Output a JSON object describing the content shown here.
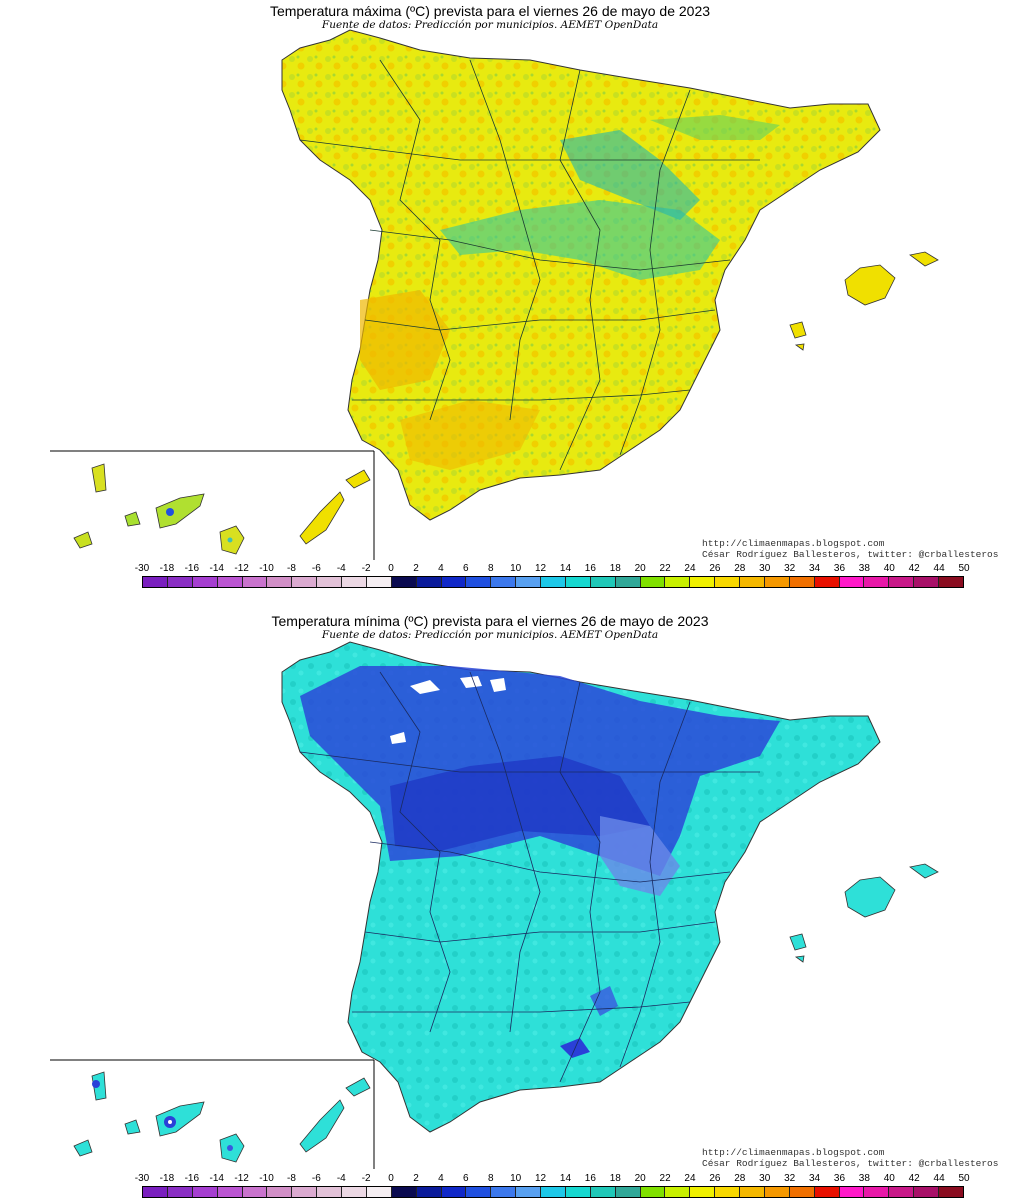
{
  "maps": [
    {
      "id": "max",
      "title": "Temperatura máxima (ºC) prevista para el viernes 26 de mayo de 2023",
      "subtitle": "Fuente de datos: Predicción por municipios. AEMET OpenData",
      "credit_url": "http://climaenmapas.blogspot.com",
      "credit_author": "César Rodríguez Ballesteros, twitter: @crballesteros",
      "dominant_colors": [
        "#f4f400",
        "#e8c800",
        "#9be010",
        "#3fc8a8"
      ]
    },
    {
      "id": "min",
      "title": "Temperatura mínima (ºC) prevista para el viernes 26 de mayo de 2023",
      "subtitle": "Fuente de datos: Predicción por municipios. AEMET OpenData",
      "credit_url": "http://climaenmapas.blogspot.com",
      "credit_author": "César Rodríguez Ballesteros, twitter: @crballesteros",
      "dominant_colors": [
        "#2ee0d8",
        "#2a40d8",
        "#6a88e8",
        "#18c8c0"
      ]
    }
  ],
  "legend": {
    "labels": [
      "-30",
      "-18",
      "-16",
      "-14",
      "-12",
      "-10",
      "-8",
      "-6",
      "-4",
      "-2",
      "0",
      "2",
      "4",
      "6",
      "8",
      "10",
      "12",
      "14",
      "16",
      "18",
      "20",
      "22",
      "24",
      "26",
      "28",
      "30",
      "32",
      "34",
      "36",
      "38",
      "40",
      "42",
      "44",
      "50"
    ],
    "colors": [
      "#7a1fbf",
      "#8a2ec4",
      "#a53ed0",
      "#bb55d2",
      "#c973cd",
      "#d28fc7",
      "#dbaad0",
      "#e3c2d8",
      "#ecd8e4",
      "#f5eef2",
      "#0a0a50",
      "#0a1a9a",
      "#1028c8",
      "#2050e0",
      "#3c78ec",
      "#58a0f0",
      "#1ec8e8",
      "#16d8d0",
      "#20c8b8",
      "#30a898",
      "#80e000",
      "#c8f000",
      "#f0f000",
      "#f8d800",
      "#f5b800",
      "#f59800",
      "#f07000",
      "#e81000",
      "#ff18c8",
      "#e818a8",
      "#c81888",
      "#a81068",
      "#8a0c20"
    ]
  }
}
